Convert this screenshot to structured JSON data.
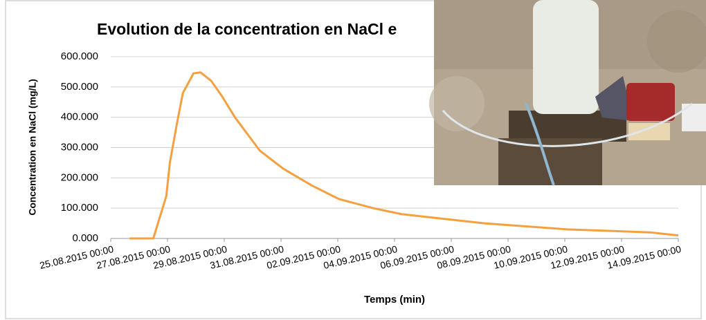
{
  "chart_data": {
    "type": "line",
    "title": "Evolution de la concentration en NaCl e",
    "x_label": "Temps (min)",
    "y_label": "Concentration en NaCl (mg/L)",
    "color": "#f4a040",
    "grid": true,
    "x": [
      "25.08.2015 16:00",
      "26.08.2015 12:00",
      "26.08.2015 23:00",
      "27.08.2015 02:00",
      "27.08.2015 08:00",
      "27.08.2015 13:00",
      "27.08.2015 22:00",
      "28.08.2015 04:00",
      "28.08.2015 13:00",
      "28.08.2015 22:00",
      "29.08.2015 09:00",
      "30.08.2015 06:00",
      "31.08.2015 02:00",
      "01.09.2015 02:00",
      "02.09.2015 01:00",
      "03.09.2015 06:00",
      "04.09.2015 06:00",
      "05.09.2015 17:00",
      "07.09.2015 04:00",
      "08.09.2015 15:00",
      "10.09.2015 02:00",
      "11.09.2015 13:00",
      "13.09.2015 00:00",
      "14.09.2015 00:00"
    ],
    "values": [
      0,
      0,
      140,
      250,
      380,
      480,
      545,
      548,
      520,
      470,
      400,
      290,
      230,
      175,
      130,
      100,
      80,
      65,
      50,
      40,
      30,
      25,
      20,
      10
    ],
    "xlim": [
      "25.08.2015 00:00",
      "14.09.2015 00:00"
    ],
    "xticks": [
      "25.08.2015 00:00",
      "27.08.2015 00:00",
      "29.08.2015 00:00",
      "31.08.2015 00:00",
      "02.09.2015 00:00",
      "04.09.2015 00:00",
      "06.09.2015 00:00",
      "08.09.2015 00:00",
      "10.09.2015 00:00",
      "12.09.2015 00:00",
      "14.09.2015 00:00"
    ],
    "ylim": [
      0,
      600
    ],
    "yticks": [
      {
        "value": 0,
        "label": "0.000"
      },
      {
        "value": 100,
        "label": "100.000"
      },
      {
        "value": 200,
        "label": "200.000"
      },
      {
        "value": 300,
        "label": "300.000"
      },
      {
        "value": 400,
        "label": "400.000"
      },
      {
        "value": 500,
        "label": "500.000"
      },
      {
        "value": 600,
        "label": "600.000"
      }
    ]
  }
}
